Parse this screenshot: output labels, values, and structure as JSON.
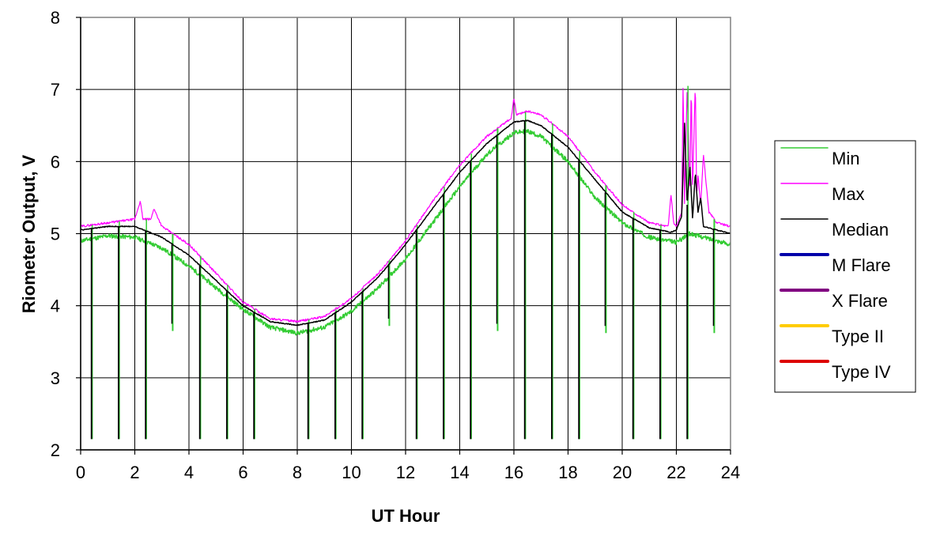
{
  "chart_data": {
    "type": "line",
    "title": "",
    "xlabel": "UT Hour",
    "ylabel": "Riometer Output, V",
    "xlim": [
      0,
      24
    ],
    "ylim": [
      2,
      8
    ],
    "xticks": [
      0,
      2,
      4,
      6,
      8,
      10,
      12,
      14,
      16,
      18,
      20,
      22,
      24
    ],
    "yticks": [
      2,
      3,
      4,
      5,
      6,
      7,
      8
    ],
    "grid": true,
    "legend_position": "right",
    "dropout_floor": 2.15,
    "dropout_hours": [
      0.4,
      1.4,
      2.4,
      4.4,
      5.4,
      6.4,
      8.4,
      9.4,
      10.4,
      12.4,
      13.4,
      14.4,
      16.4,
      17.4,
      18.4,
      20.4,
      21.4,
      22.4
    ],
    "partial_dips": [
      {
        "x": 3.4,
        "y": 3.65
      },
      {
        "x": 11.4,
        "y": 3.72
      },
      {
        "x": 15.4,
        "y": 3.65
      },
      {
        "x": 19.4,
        "y": 3.62
      },
      {
        "x": 23.4,
        "y": 3.62
      }
    ],
    "series": [
      {
        "name": "Min",
        "color": "#33cc33",
        "x": [
          0,
          1,
          2,
          3,
          4,
          5,
          6,
          7,
          8,
          9,
          10,
          11,
          12,
          13,
          14,
          15,
          16,
          16.5,
          17,
          18,
          19,
          20,
          21,
          22,
          22.5,
          23,
          24
        ],
        "y": [
          4.9,
          4.97,
          4.95,
          4.8,
          4.55,
          4.25,
          3.95,
          3.7,
          3.62,
          3.7,
          3.92,
          4.25,
          4.65,
          5.15,
          5.65,
          6.1,
          6.4,
          6.42,
          6.35,
          6.0,
          5.5,
          5.15,
          4.95,
          4.88,
          5.0,
          4.95,
          4.85
        ]
      },
      {
        "name": "Max",
        "color": "#ff00ff",
        "x": [
          0,
          1,
          2,
          2.2,
          2.3,
          2.6,
          2.7,
          3,
          4,
          5,
          6,
          7,
          8,
          9,
          10,
          11,
          12,
          13,
          14,
          15,
          15.9,
          16,
          16.1,
          16.5,
          17,
          18,
          19,
          20,
          21,
          21.7,
          21.8,
          21.9,
          22,
          22.2,
          22.25,
          22.3,
          22.4,
          22.5,
          22.55,
          22.6,
          22.7,
          22.75,
          22.8,
          22.9,
          23,
          23.2,
          23.3,
          23.5,
          24
        ],
        "y": [
          5.1,
          5.15,
          5.2,
          5.45,
          5.2,
          5.2,
          5.35,
          5.1,
          4.85,
          4.45,
          4.05,
          3.82,
          3.78,
          3.85,
          4.1,
          4.45,
          4.9,
          5.45,
          5.95,
          6.35,
          6.6,
          6.88,
          6.65,
          6.7,
          6.65,
          6.35,
          5.85,
          5.4,
          5.15,
          5.1,
          5.55,
          5.15,
          5.1,
          5.3,
          7.15,
          5.4,
          7.05,
          5.5,
          7.12,
          5.6,
          7.12,
          5.5,
          5.8,
          5.4,
          6.1,
          5.3,
          5.25,
          5.15,
          5.1
        ]
      },
      {
        "name": "Median",
        "color": "#000000",
        "x": [
          0,
          1,
          2,
          3,
          4,
          5,
          6,
          7,
          8,
          9,
          10,
          11,
          12,
          13,
          14,
          15,
          16,
          16.5,
          17,
          18,
          19,
          20,
          21,
          21.8,
          22,
          22.2,
          22.3,
          22.4,
          22.5,
          22.6,
          22.7,
          22.8,
          22.9,
          23,
          24
        ],
        "y": [
          5.05,
          5.1,
          5.1,
          4.95,
          4.7,
          4.35,
          4.0,
          3.78,
          3.73,
          3.8,
          4.05,
          4.4,
          4.85,
          5.35,
          5.85,
          6.25,
          6.55,
          6.57,
          6.5,
          6.2,
          5.75,
          5.3,
          5.08,
          5.02,
          5.05,
          5.25,
          6.55,
          5.4,
          5.95,
          5.2,
          5.85,
          5.3,
          5.5,
          5.1,
          5.0
        ]
      },
      {
        "name": "M Flare",
        "color": "#0000aa",
        "x": [],
        "y": []
      },
      {
        "name": "X Flare",
        "color": "#800080",
        "x": [],
        "y": []
      },
      {
        "name": "Type II",
        "color": "#ffcc00",
        "x": [],
        "y": []
      },
      {
        "name": "Type IV",
        "color": "#dd0000",
        "x": [],
        "y": []
      }
    ]
  }
}
